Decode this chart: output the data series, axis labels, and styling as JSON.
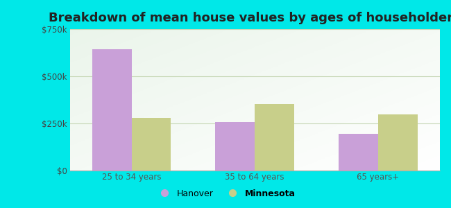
{
  "title": "Breakdown of mean house values by ages of householders",
  "categories": [
    "25 to 34 years",
    "35 to 64 years",
    "65 years+"
  ],
  "hanover_values": [
    645000,
    258000,
    196000
  ],
  "minnesota_values": [
    278000,
    352000,
    298000
  ],
  "hanover_color": "#c9a0d8",
  "minnesota_color": "#c8cf8a",
  "ylim": [
    0,
    750000
  ],
  "yticks": [
    0,
    250000,
    500000,
    750000
  ],
  "ytick_labels": [
    "$0",
    "$250k",
    "$500k",
    "$750k"
  ],
  "bar_width": 0.32,
  "background_outer": "#00e8e8",
  "grid_color": "#c8d8b8",
  "title_fontsize": 13,
  "legend_hanover": "Hanover",
  "legend_minnesota": "Minnesota"
}
